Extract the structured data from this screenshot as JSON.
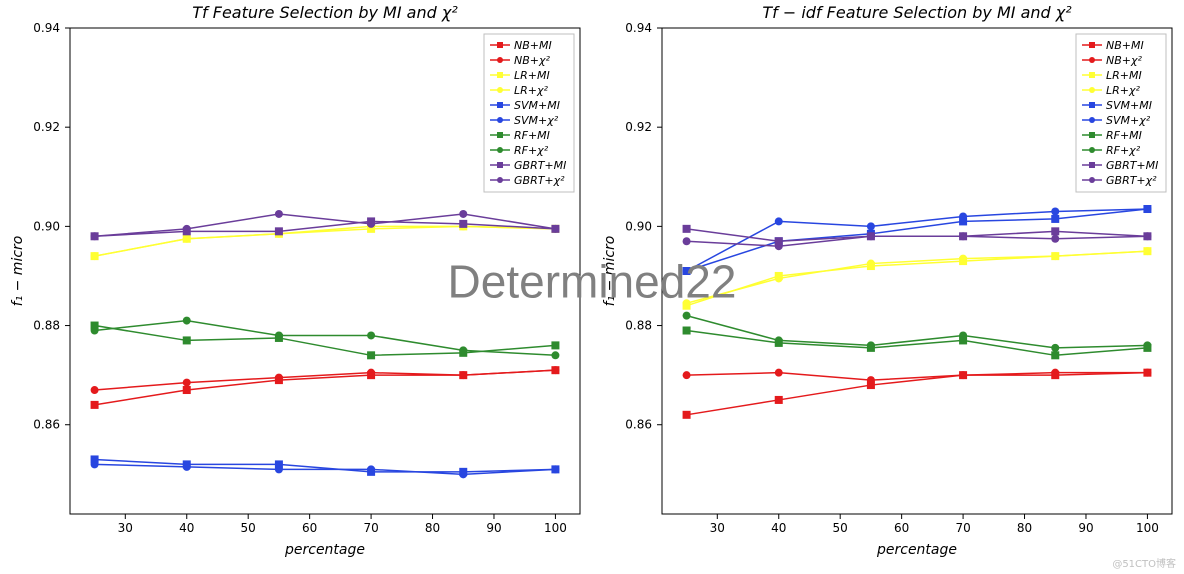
{
  "watermark_text": "Determined22",
  "footer_text": "@51CTO博客",
  "legend_labels": [
    "NB+MI",
    "NB+χ²",
    "LR+MI",
    "LR+χ²",
    "SVM+MI",
    "SVM+χ²",
    "RF+MI",
    "RF+χ²",
    "GBRT+MI",
    "GBRT+χ²"
  ],
  "legend_colors": [
    "#e41a1c",
    "#e41a1c",
    "#ffff33",
    "#ffff33",
    "#2846e0",
    "#2846e0",
    "#2e8b2e",
    "#2e8b2e",
    "#6a3d9a",
    "#6a3d9a"
  ],
  "legend_markers": [
    "square",
    "circle",
    "square",
    "circle",
    "square",
    "circle",
    "square",
    "circle",
    "square",
    "circle"
  ],
  "marker_size": 4,
  "line_width": 1.5,
  "legend_fontsize": 11,
  "tick_fontsize": 12,
  "title_fontsize": 16,
  "label_fontsize": 14,
  "background_color": "#ffffff",
  "border_color": "#000000",
  "x_values": [
    25,
    40,
    55,
    70,
    85,
    100
  ],
  "x_ticks": [
    30,
    40,
    50,
    60,
    70,
    80,
    90,
    100
  ],
  "y_ticks": [
    0.86,
    0.88,
    0.9,
    0.92,
    0.94
  ],
  "ylim": [
    0.842,
    0.94
  ],
  "xlim": [
    21,
    104
  ],
  "panels": [
    {
      "title": "Tf Feature Selection by MI and χ²",
      "xlabel": "percentage",
      "ylabel": "f₁ − micro",
      "series": [
        {
          "key": "NB+MI",
          "y": [
            0.864,
            0.867,
            0.869,
            0.87,
            0.87,
            0.871
          ]
        },
        {
          "key": "NB+χ²",
          "y": [
            0.867,
            0.8685,
            0.8695,
            0.8705,
            0.87,
            0.871
          ]
        },
        {
          "key": "LR+MI",
          "y": [
            0.894,
            0.8975,
            0.8985,
            0.8995,
            0.9,
            0.8995
          ]
        },
        {
          "key": "LR+χ²",
          "y": [
            0.894,
            0.8975,
            0.8985,
            0.9,
            0.9,
            0.8995
          ]
        },
        {
          "key": "SVM+MI",
          "y": [
            0.853,
            0.852,
            0.852,
            0.8505,
            0.8505,
            0.851
          ]
        },
        {
          "key": "SVM+χ²",
          "y": [
            0.852,
            0.8515,
            0.851,
            0.851,
            0.85,
            0.851
          ]
        },
        {
          "key": "RF+MI",
          "y": [
            0.88,
            0.877,
            0.8775,
            0.874,
            0.8745,
            0.876
          ]
        },
        {
          "key": "RF+χ²",
          "y": [
            0.879,
            0.881,
            0.878,
            0.878,
            0.875,
            0.874
          ]
        },
        {
          "key": "GBRT+MI",
          "y": [
            0.898,
            0.899,
            0.899,
            0.901,
            0.9005,
            0.8995
          ]
        },
        {
          "key": "GBRT+χ²",
          "y": [
            0.898,
            0.8995,
            0.9025,
            0.9005,
            0.9025,
            0.8995
          ]
        }
      ]
    },
    {
      "title": "Tf − idf Feature Selection by MI and χ²",
      "xlabel": "percentage",
      "ylabel": "f₁ − micro",
      "series": [
        {
          "key": "NB+MI",
          "y": [
            0.862,
            0.865,
            0.868,
            0.87,
            0.87,
            0.8705
          ]
        },
        {
          "key": "NB+χ²",
          "y": [
            0.87,
            0.8705,
            0.869,
            0.87,
            0.8705,
            0.8705
          ]
        },
        {
          "key": "LR+MI",
          "y": [
            0.884,
            0.89,
            0.892,
            0.893,
            0.894,
            0.895
          ]
        },
        {
          "key": "LR+χ²",
          "y": [
            0.8845,
            0.8895,
            0.8925,
            0.8935,
            0.894,
            0.895
          ]
        },
        {
          "key": "SVM+MI",
          "y": [
            0.891,
            0.897,
            0.8985,
            0.901,
            0.9015,
            0.9035
          ]
        },
        {
          "key": "SVM+χ²",
          "y": [
            0.891,
            0.901,
            0.9,
            0.902,
            0.903,
            0.9035
          ]
        },
        {
          "key": "RF+MI",
          "y": [
            0.879,
            0.8765,
            0.8755,
            0.877,
            0.874,
            0.8755
          ]
        },
        {
          "key": "RF+χ²",
          "y": [
            0.882,
            0.877,
            0.876,
            0.878,
            0.8755,
            0.876
          ]
        },
        {
          "key": "GBRT+MI",
          "y": [
            0.8995,
            0.897,
            0.898,
            0.898,
            0.899,
            0.898
          ]
        },
        {
          "key": "GBRT+χ²",
          "y": [
            0.897,
            0.896,
            0.898,
            0.898,
            0.8975,
            0.898
          ]
        }
      ]
    }
  ]
}
